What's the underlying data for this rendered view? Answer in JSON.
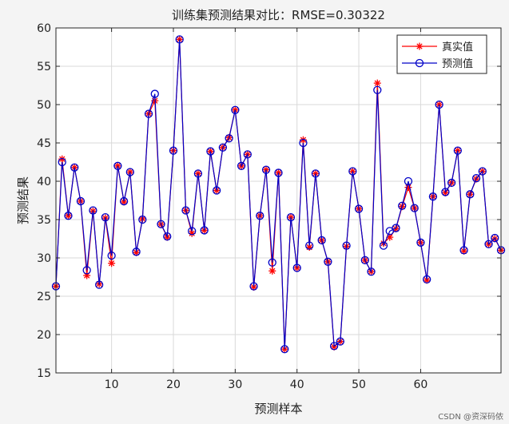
{
  "chart_data": {
    "type": "line",
    "title": "训练集预测结果对比：RMSE=0.30322",
    "xlabel": "预测样本",
    "ylabel": "预测结果",
    "xlim": [
      1,
      73
    ],
    "ylim": [
      15,
      60
    ],
    "xticks": [
      10,
      20,
      30,
      40,
      50,
      60
    ],
    "yticks": [
      15,
      20,
      25,
      30,
      35,
      40,
      45,
      50,
      55,
      60
    ],
    "grid": true,
    "legend": "top-right",
    "series": [
      {
        "name": "真实值",
        "color": "#ff0000",
        "marker": "asterisk",
        "x": [
          1,
          2,
          3,
          4,
          5,
          6,
          7,
          8,
          9,
          10,
          11,
          12,
          13,
          14,
          15,
          16,
          17,
          18,
          19,
          20,
          21,
          22,
          23,
          24,
          25,
          26,
          27,
          28,
          29,
          30,
          31,
          32,
          33,
          34,
          35,
          36,
          37,
          38,
          39,
          40,
          41,
          42,
          43,
          44,
          45,
          46,
          47,
          48,
          49,
          50,
          51,
          52,
          53,
          54,
          55,
          56,
          57,
          58,
          59,
          60,
          61,
          62,
          63,
          64,
          65,
          66,
          67,
          68,
          69,
          70,
          71,
          72,
          73
        ],
        "values": [
          26.3,
          42.9,
          35.5,
          41.8,
          37.4,
          27.7,
          36.1,
          26.6,
          35.2,
          29.3,
          42.0,
          37.3,
          41.2,
          30.7,
          35.1,
          48.8,
          50.5,
          34.4,
          32.7,
          44.0,
          58.5,
          36.2,
          33.2,
          41.0,
          33.6,
          43.9,
          38.8,
          44.4,
          45.7,
          49.3,
          42.0,
          43.5,
          26.2,
          35.5,
          41.5,
          28.3,
          41.1,
          18.1,
          35.3,
          28.7,
          45.4,
          31.4,
          41.0,
          32.3,
          29.5,
          18.4,
          19.1,
          31.5,
          41.3,
          36.4,
          29.7,
          28.2,
          52.8,
          31.9,
          32.7,
          33.8,
          36.7,
          39.2,
          36.5,
          32.0,
          27.1,
          38.0,
          50.0,
          38.5,
          39.8,
          44.0,
          30.9,
          38.3,
          40.3,
          41.3,
          31.8,
          32.5,
          31.0
        ]
      },
      {
        "name": "预测值",
        "color": "#0000c8",
        "marker": "circle",
        "x": [
          1,
          2,
          3,
          4,
          5,
          6,
          7,
          8,
          9,
          10,
          11,
          12,
          13,
          14,
          15,
          16,
          17,
          18,
          19,
          20,
          21,
          22,
          23,
          24,
          25,
          26,
          27,
          28,
          29,
          30,
          31,
          32,
          33,
          34,
          35,
          36,
          37,
          38,
          39,
          40,
          41,
          42,
          43,
          44,
          45,
          46,
          47,
          48,
          49,
          50,
          51,
          52,
          53,
          54,
          55,
          56,
          57,
          58,
          59,
          60,
          61,
          62,
          63,
          64,
          65,
          66,
          67,
          68,
          69,
          70,
          71,
          72,
          73
        ],
        "values": [
          26.3,
          42.5,
          35.5,
          41.8,
          37.4,
          28.4,
          36.2,
          26.5,
          35.3,
          30.3,
          42.0,
          37.4,
          41.2,
          30.8,
          35.0,
          48.8,
          51.4,
          34.4,
          32.8,
          44.0,
          58.5,
          36.2,
          33.5,
          41.0,
          33.6,
          43.9,
          38.8,
          44.4,
          45.6,
          49.3,
          42.0,
          43.5,
          26.3,
          35.5,
          41.5,
          29.4,
          41.1,
          18.1,
          35.3,
          28.7,
          45.0,
          31.6,
          41.0,
          32.3,
          29.5,
          18.5,
          19.1,
          31.6,
          41.3,
          36.4,
          29.7,
          28.2,
          51.9,
          31.6,
          33.5,
          33.9,
          36.8,
          40.0,
          36.5,
          32.0,
          27.2,
          38.0,
          50.0,
          38.6,
          39.8,
          44.0,
          31.0,
          38.3,
          40.4,
          41.3,
          31.8,
          32.6,
          31.0
        ]
      }
    ]
  },
  "watermark": "CSDN @资深码侬"
}
